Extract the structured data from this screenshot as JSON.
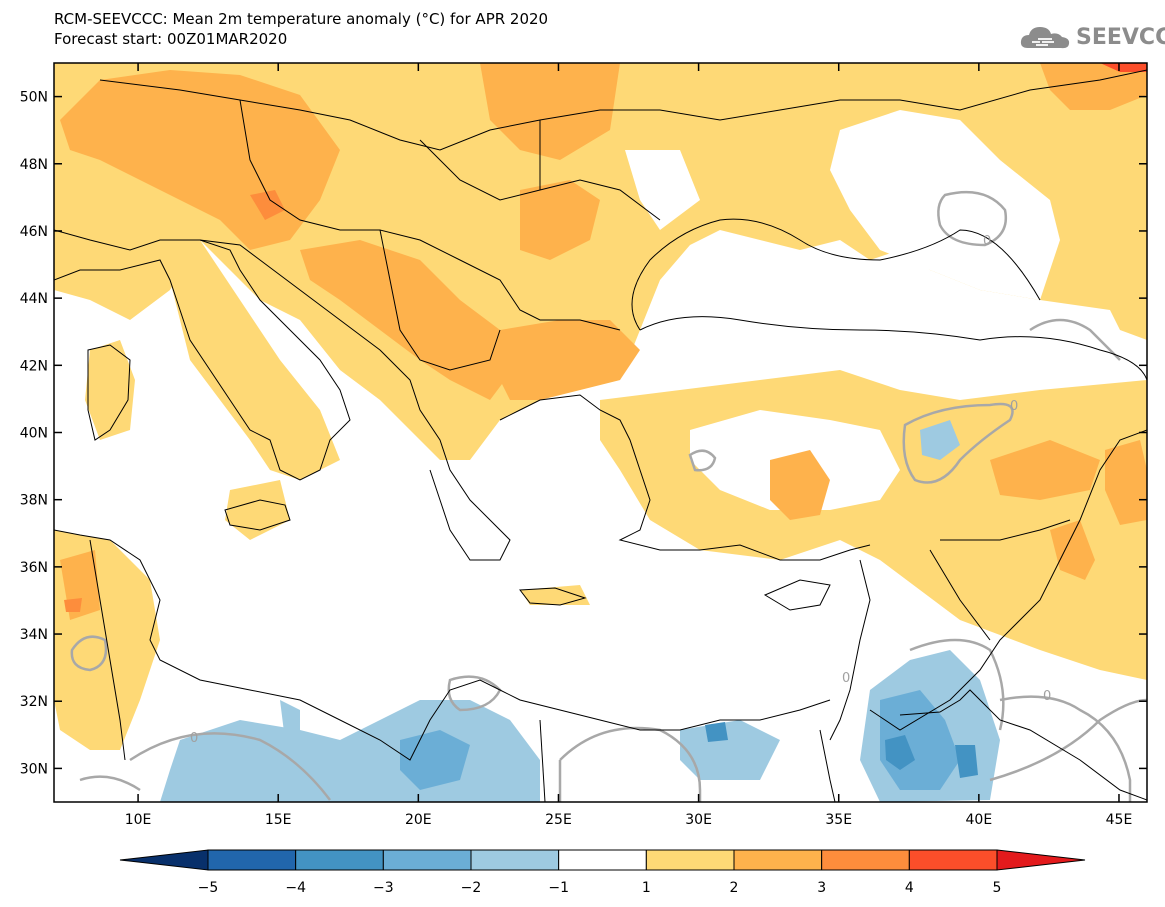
{
  "header": {
    "title": "RCM-SEEVCCC: Mean 2m temperature anomaly (°C) for APR 2020",
    "subtitle": "Forecast start: 00Z01MAR2020",
    "logo_text": "SEEVCCC"
  },
  "map": {
    "lon_range": [
      7,
      46
    ],
    "lat_range": [
      29,
      51
    ],
    "lat_ticks": [
      "50N",
      "48N",
      "46N",
      "44N",
      "42N",
      "40N",
      "38N",
      "36N",
      "34N",
      "32N",
      "30N"
    ],
    "lon_ticks": [
      "10E",
      "15E",
      "20E",
      "25E",
      "30E",
      "35E",
      "40E",
      "45E"
    ],
    "contour_labels": [
      "0",
      "0",
      "0",
      "0",
      "0"
    ]
  },
  "colorbar": {
    "labels": [
      "−5",
      "−4",
      "−3",
      "−2",
      "−1",
      "1",
      "2",
      "3",
      "4",
      "5"
    ],
    "colors": [
      "#08306b",
      "#2166ac",
      "#4393c3",
      "#6baed6",
      "#9ecae1",
      "#ffffff",
      "#fed976",
      "#feb24c",
      "#fd8d3c",
      "#fc4e2a",
      "#e31a1c"
    ]
  }
}
